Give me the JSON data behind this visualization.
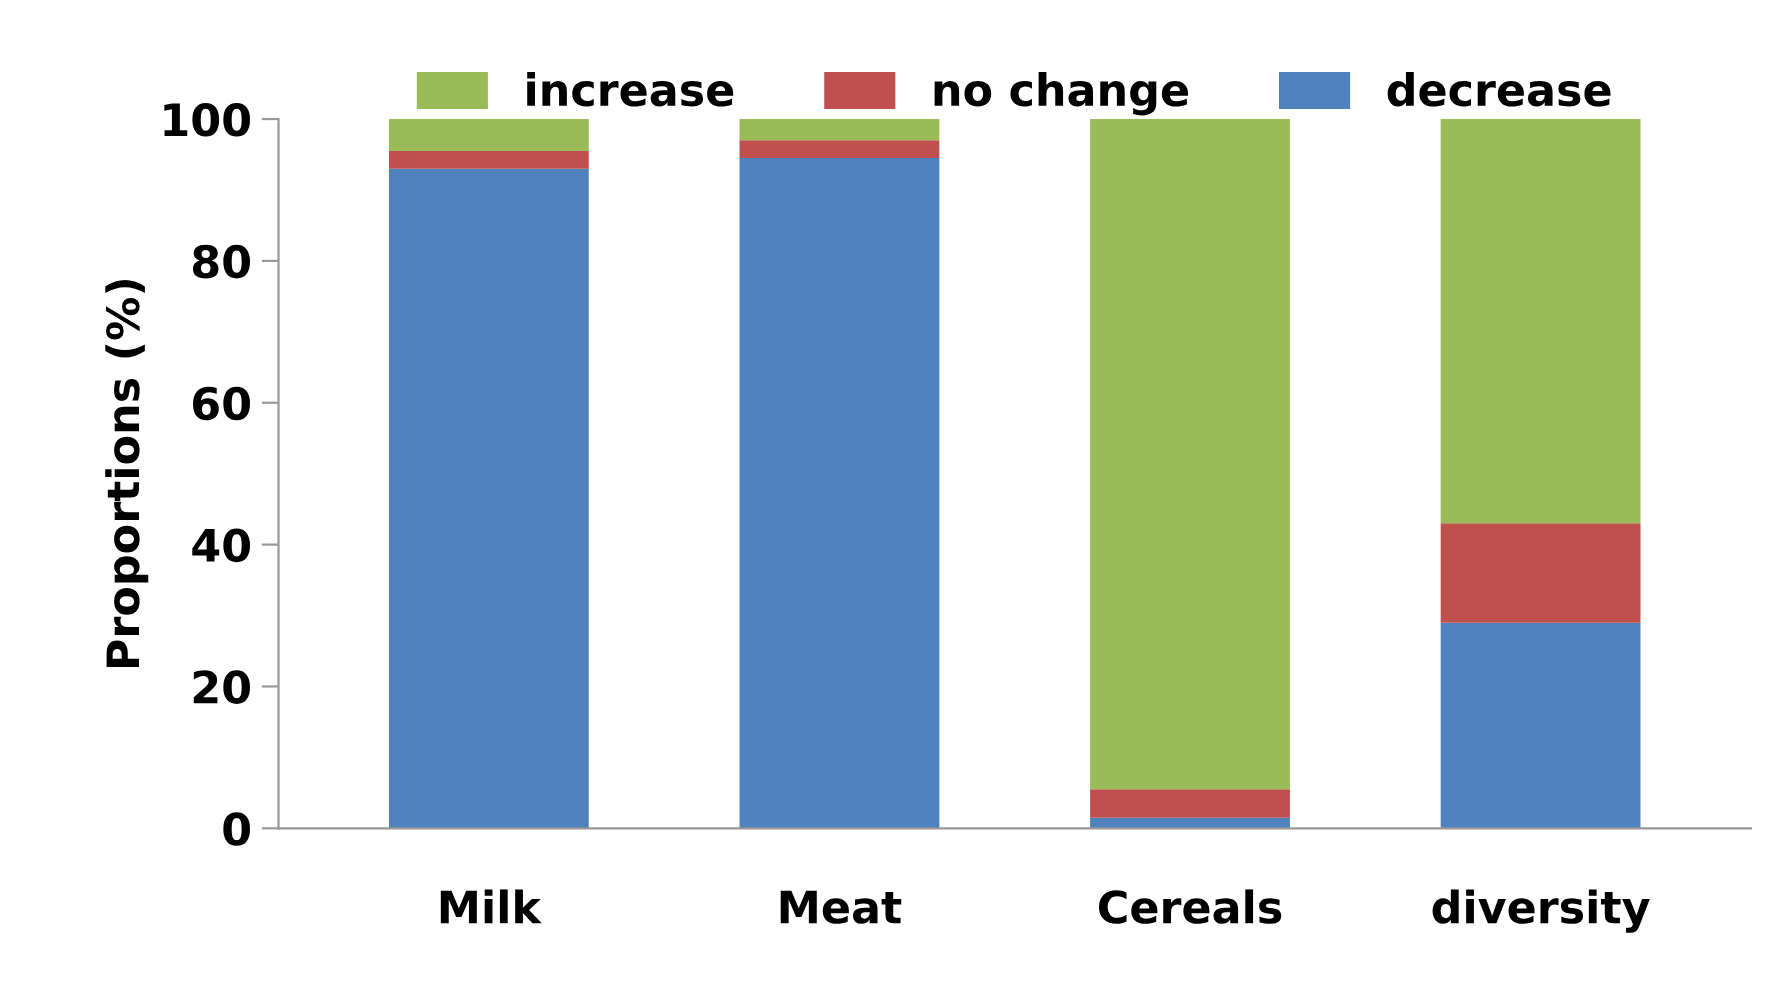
{
  "chart_data": {
    "type": "bar",
    "stacked": true,
    "ylabel": "Proportions (%)",
    "categories": [
      "Milk",
      "Meat",
      "Cereals",
      "diversity"
    ],
    "series": [
      {
        "name": "decrease",
        "color": "#4f81bd",
        "values": [
          93,
          94.5,
          1.5,
          29
        ]
      },
      {
        "name": "no change",
        "color": "#c0504d",
        "values": [
          2.5,
          2.5,
          4,
          14
        ]
      },
      {
        "name": "increase",
        "color": "#9bbb59",
        "values": [
          4.5,
          3,
          94.5,
          57
        ]
      }
    ],
    "ylim": [
      0,
      100
    ],
    "yticks": [
      0,
      20,
      40,
      60,
      80,
      100
    ],
    "grid": false,
    "legend": "top"
  }
}
